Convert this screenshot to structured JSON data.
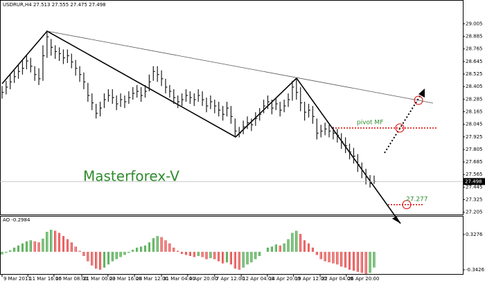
{
  "chart_data": {
    "type": "ohlc",
    "title": "USDRUR,H4 27.513 27.555 27.475 27.498",
    "color": "#1a1a1a",
    "high": [
      28.41,
      28.46,
      28.52,
      28.56,
      28.62,
      28.66,
      28.7,
      28.68,
      28.6,
      28.58,
      28.8,
      28.94,
      28.86,
      28.8,
      28.78,
      28.76,
      28.76,
      28.72,
      28.66,
      28.6,
      28.54,
      28.44,
      28.34,
      28.24,
      28.26,
      28.34,
      28.38,
      28.38,
      28.32,
      28.34,
      28.32,
      28.36,
      28.4,
      28.42,
      28.4,
      28.42,
      28.52,
      28.6,
      28.6,
      28.56,
      28.48,
      28.42,
      28.38,
      28.32,
      28.34,
      28.38,
      28.36,
      28.34,
      28.38,
      28.36,
      28.3,
      28.32,
      28.28,
      28.26,
      28.22,
      28.26,
      28.22,
      28.1,
      28.02,
      28.08,
      28.12,
      28.1,
      28.16,
      28.2,
      28.28,
      28.32,
      28.28,
      28.3,
      28.26,
      28.28,
      28.34,
      28.46,
      28.48,
      28.4,
      28.26,
      28.24,
      28.22,
      28.1,
      28.04,
      28.06,
      28.04,
      28.02,
      28.0,
      27.96,
      27.92,
      27.86,
      27.82,
      27.76,
      27.68,
      27.62,
      27.56,
      27.555
    ],
    "low": [
      28.29,
      28.33,
      28.38,
      28.44,
      28.48,
      28.52,
      28.57,
      28.54,
      28.46,
      28.42,
      28.46,
      28.68,
      28.7,
      28.67,
      28.65,
      28.62,
      28.63,
      28.58,
      28.51,
      28.45,
      28.38,
      28.26,
      28.18,
      28.1,
      28.12,
      28.2,
      28.26,
      28.24,
      28.18,
      28.21,
      28.2,
      28.24,
      28.28,
      28.3,
      28.26,
      28.3,
      28.36,
      28.46,
      28.45,
      28.41,
      28.34,
      28.3,
      28.24,
      28.2,
      28.22,
      28.26,
      28.24,
      28.22,
      28.26,
      28.22,
      28.16,
      28.19,
      28.15,
      28.12,
      28.08,
      28.12,
      28.05,
      27.92,
      27.92,
      27.95,
      28.0,
      27.98,
      28.03,
      28.08,
      28.15,
      28.19,
      28.14,
      28.18,
      28.12,
      28.16,
      28.21,
      28.27,
      28.28,
      28.17,
      28.08,
      28.11,
      28.05,
      27.9,
      27.92,
      27.94,
      27.92,
      27.9,
      27.87,
      27.81,
      27.77,
      27.71,
      27.67,
      27.59,
      27.53,
      27.47,
      27.44,
      27.475
    ],
    "close": [
      28.35,
      28.4,
      28.45,
      28.5,
      28.55,
      28.58,
      28.65,
      28.6,
      28.52,
      28.48,
      28.7,
      28.88,
      28.78,
      28.74,
      28.72,
      28.68,
      28.7,
      28.64,
      28.58,
      28.52,
      28.45,
      28.32,
      28.25,
      28.15,
      28.2,
      28.28,
      28.32,
      28.3,
      28.24,
      28.28,
      28.26,
      28.3,
      28.34,
      28.36,
      28.32,
      28.36,
      28.45,
      28.55,
      28.52,
      28.48,
      28.4,
      28.36,
      28.3,
      28.26,
      28.28,
      28.32,
      28.3,
      28.28,
      28.32,
      28.28,
      28.22,
      28.26,
      28.22,
      28.18,
      28.14,
      28.2,
      28.12,
      27.98,
      27.96,
      28.02,
      28.06,
      28.04,
      28.1,
      28.14,
      28.22,
      28.26,
      28.2,
      28.24,
      28.18,
      28.22,
      28.28,
      28.4,
      28.35,
      28.25,
      28.16,
      28.18,
      28.12,
      27.96,
      27.98,
      28.0,
      27.98,
      27.96,
      27.94,
      27.88,
      27.84,
      27.78,
      27.74,
      27.66,
      27.6,
      27.54,
      27.48,
      27.498
    ],
    "xlim": [
      -0.5,
      112.7
    ],
    "xticks": [
      {
        "value": 0,
        "label": "9 Mar 2011"
      },
      {
        "value": 6.3,
        "label": "11 Mar 16:00"
      },
      {
        "value": 12.7,
        "label": "16 Mar 08:00"
      },
      {
        "value": 19.5,
        "label": "21 Mar 00:00"
      },
      {
        "value": 25.9,
        "label": "23 Mar 16:00"
      },
      {
        "value": 32.4,
        "label": "28 Mar 12:00"
      },
      {
        "value": 39,
        "label": "31 Mar 04:00"
      },
      {
        "value": 45.4,
        "label": "4 Apr 20:00"
      },
      {
        "value": 52,
        "label": "7 Apr 12:00"
      },
      {
        "value": 58.5,
        "label": "12 Apr 04:00"
      },
      {
        "value": 64.9,
        "label": "14 Apr 20:00"
      },
      {
        "value": 71.3,
        "label": "19 Apr 12:00"
      },
      {
        "value": 77.8,
        "label": "22 Apr 04:00"
      },
      {
        "value": 84.2,
        "label": "26 Apr 20:00"
      }
    ],
    "ylim": [
      27.183,
      29.186
    ],
    "yticks": [
      29.005,
      28.885,
      28.765,
      28.645,
      28.525,
      28.405,
      28.285,
      28.165,
      28.045,
      27.925,
      27.805,
      27.685,
      27.565,
      27.445,
      27.325,
      27.205
    ],
    "annotations": {
      "watermark": "Masterforex-V",
      "pivot": "pivot MF",
      "target": 27.277
    },
    "indicator": {
      "title": "AO -0.2984",
      "up_color": "#2e9a2e",
      "down_color": "#e03030",
      "values": [
        -0.05,
        -0.02,
        0.03,
        0.08,
        0.12,
        0.16,
        0.2,
        0.22,
        0.2,
        0.18,
        0.25,
        0.38,
        0.42,
        0.4,
        0.36,
        0.3,
        0.24,
        0.18,
        0.1,
        0.02,
        -0.08,
        -0.18,
        -0.26,
        -0.32,
        -0.34,
        -0.3,
        -0.24,
        -0.18,
        -0.14,
        -0.1,
        -0.06,
        -0.02,
        0.04,
        0.08,
        0.1,
        0.12,
        0.18,
        0.26,
        0.3,
        0.28,
        0.22,
        0.16,
        0.08,
        0.02,
        -0.04,
        -0.06,
        -0.08,
        -0.1,
        -0.08,
        -0.1,
        -0.14,
        -0.12,
        -0.14,
        -0.18,
        -0.22,
        -0.2,
        -0.24,
        -0.32,
        -0.34,
        -0.3,
        -0.24,
        -0.2,
        -0.14,
        -0.08,
        0.0,
        0.08,
        0.1,
        0.14,
        0.12,
        0.16,
        0.24,
        0.36,
        0.4,
        0.34,
        0.22,
        0.16,
        0.08,
        -0.06,
        -0.14,
        -0.18,
        -0.2,
        -0.22,
        -0.24,
        -0.28,
        -0.3,
        -0.34,
        -0.36,
        -0.38,
        -0.4,
        -0.42,
        -0.4,
        -0.2984
      ],
      "ylim": [
        -0.4214,
        0.6693
      ],
      "yticks": [
        0.3276,
        -0.3426
      ]
    }
  }
}
